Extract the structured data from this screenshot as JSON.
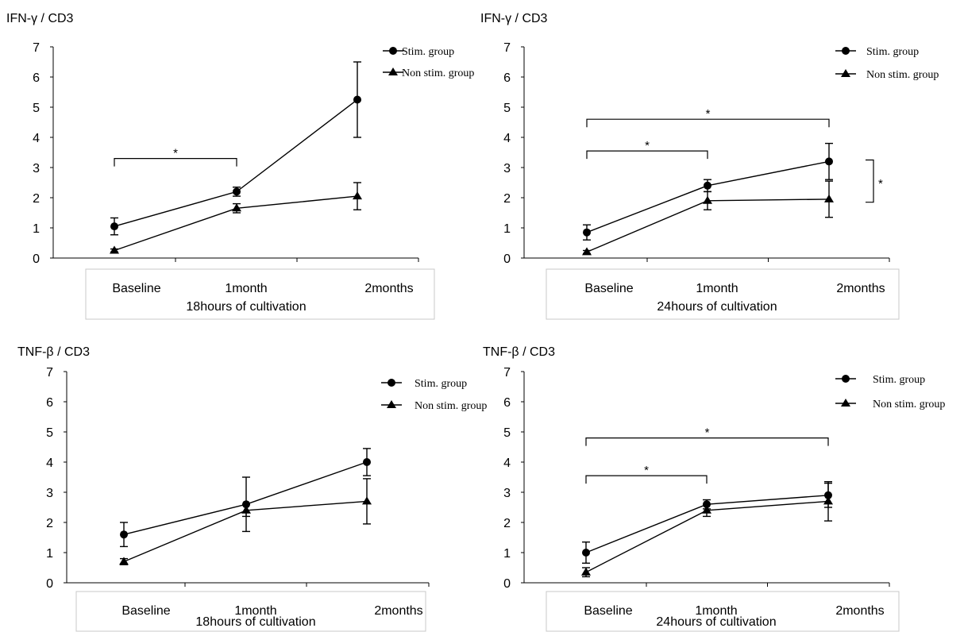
{
  "chart_data": [
    {
      "type": "line",
      "title": "IFN-γ / CD3",
      "categories": [
        "Baseline",
        "1month",
        "2months"
      ],
      "xlabel": "18hours of cultivation",
      "ylim": [
        0,
        7
      ],
      "yticks": [
        "0",
        "1",
        "2",
        "3",
        "4",
        "5",
        "6",
        "7"
      ],
      "legend_position": "top-right",
      "series": [
        {
          "name": "Stim. group",
          "marker": "circle",
          "values": [
            1.05,
            2.2,
            5.25
          ],
          "err": [
            0.28,
            0.15,
            1.25
          ]
        },
        {
          "name": "Non stim. group",
          "marker": "triangle",
          "values": [
            0.25,
            1.65,
            2.05
          ],
          "err": [
            0.05,
            0.15,
            0.45
          ]
        }
      ],
      "significance": [
        {
          "from": 0,
          "to": 1,
          "level": 3.3,
          "label": "*"
        }
      ],
      "vertical_significance": []
    },
    {
      "type": "line",
      "title": "IFN-γ / CD3",
      "categories": [
        "Baseline",
        "1month",
        "2months"
      ],
      "xlabel": "24hours of cultivation",
      "ylim": [
        0,
        7
      ],
      "yticks": [
        "0",
        "1",
        "2",
        "3",
        "4",
        "5",
        "6",
        "7"
      ],
      "legend_position": "top-right",
      "series": [
        {
          "name": "Stim. group",
          "marker": "circle",
          "values": [
            0.85,
            2.4,
            3.2
          ],
          "err": [
            0.25,
            0.2,
            0.6
          ]
        },
        {
          "name": "Non stim. group",
          "marker": "triangle",
          "values": [
            0.2,
            1.9,
            1.95
          ],
          "err": [
            0.05,
            0.3,
            0.6
          ]
        }
      ],
      "significance": [
        {
          "from": 0,
          "to": 2,
          "level": 4.6,
          "label": "*"
        },
        {
          "from": 0,
          "to": 1,
          "level": 3.55,
          "label": "*"
        }
      ],
      "vertical_significance": [
        {
          "y1": 3.25,
          "y2": 1.85,
          "label": "*"
        }
      ]
    },
    {
      "type": "line",
      "title": "TNF-β / CD3",
      "categories": [
        "Baseline",
        "1month",
        "2months"
      ],
      "xlabel": "18hours of cultivation",
      "ylim": [
        0,
        7
      ],
      "yticks": [
        "0",
        "1",
        "2",
        "3",
        "4",
        "5",
        "6",
        "7"
      ],
      "legend_position": "top-right",
      "series": [
        {
          "name": "Stim. group",
          "marker": "circle",
          "values": [
            1.6,
            2.6,
            4.0
          ],
          "err": [
            0.4,
            0.9,
            0.45
          ]
        },
        {
          "name": "Non stim. group",
          "marker": "triangle",
          "values": [
            0.7,
            2.4,
            2.7
          ],
          "err": [
            0.1,
            0.2,
            0.75
          ]
        }
      ],
      "significance": [],
      "vertical_significance": []
    },
    {
      "type": "line",
      "title": "TNF-β / CD3",
      "categories": [
        "Baseline",
        "1month",
        "2months"
      ],
      "xlabel": "24hours of cultivation",
      "ylim": [
        0,
        7
      ],
      "yticks": [
        "0",
        "1",
        "2",
        "3",
        "4",
        "5",
        "6",
        "7"
      ],
      "legend_position": "top-right",
      "series": [
        {
          "name": "Stim. group",
          "marker": "circle",
          "values": [
            1.0,
            2.6,
            2.9
          ],
          "err": [
            0.35,
            0.15,
            0.4
          ]
        },
        {
          "name": "Non stim. group",
          "marker": "triangle",
          "values": [
            0.35,
            2.4,
            2.7
          ],
          "err": [
            0.15,
            0.2,
            0.65
          ]
        }
      ],
      "significance": [
        {
          "from": 0,
          "to": 2,
          "level": 4.8,
          "label": "*"
        },
        {
          "from": 0,
          "to": 1,
          "level": 3.55,
          "label": "*"
        }
      ],
      "vertical_significance": []
    }
  ]
}
